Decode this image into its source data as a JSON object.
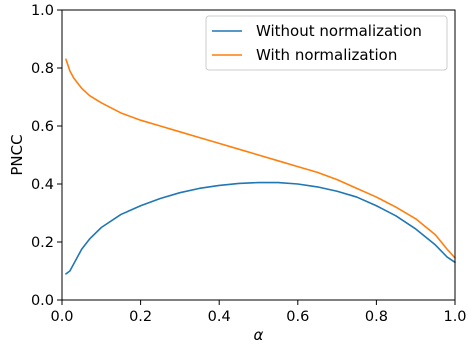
{
  "chart_data": {
    "type": "line",
    "title": "",
    "xlabel": "α",
    "ylabel": "PNCC",
    "xlim": [
      0.0,
      1.0
    ],
    "ylim": [
      0.0,
      1.0
    ],
    "xticks": [
      "0.0",
      "0.2",
      "0.4",
      "0.6",
      "0.8",
      "1.0"
    ],
    "yticks": [
      "0.0",
      "0.2",
      "0.4",
      "0.6",
      "0.8",
      "1.0"
    ],
    "grid": false,
    "legend_position": "top-right",
    "series": [
      {
        "name": "Without normalization",
        "color": "#1f77b4",
        "x": [
          0.01,
          0.02,
          0.03,
          0.04,
          0.05,
          0.07,
          0.1,
          0.15,
          0.2,
          0.25,
          0.3,
          0.35,
          0.4,
          0.45,
          0.5,
          0.55,
          0.6,
          0.65,
          0.7,
          0.75,
          0.8,
          0.85,
          0.9,
          0.95,
          0.98,
          1.0
        ],
        "y": [
          0.09,
          0.1,
          0.125,
          0.15,
          0.175,
          0.21,
          0.25,
          0.295,
          0.325,
          0.35,
          0.37,
          0.385,
          0.395,
          0.402,
          0.405,
          0.405,
          0.4,
          0.39,
          0.375,
          0.355,
          0.325,
          0.29,
          0.245,
          0.19,
          0.148,
          0.13
        ]
      },
      {
        "name": "With normalization",
        "color": "#ff7f0e",
        "x": [
          0.01,
          0.02,
          0.03,
          0.05,
          0.07,
          0.1,
          0.15,
          0.2,
          0.25,
          0.3,
          0.35,
          0.4,
          0.45,
          0.5,
          0.55,
          0.6,
          0.65,
          0.7,
          0.75,
          0.8,
          0.85,
          0.9,
          0.95,
          0.98,
          1.0
        ],
        "y": [
          0.83,
          0.79,
          0.765,
          0.73,
          0.705,
          0.68,
          0.645,
          0.62,
          0.6,
          0.58,
          0.56,
          0.54,
          0.52,
          0.5,
          0.48,
          0.46,
          0.44,
          0.415,
          0.385,
          0.355,
          0.32,
          0.28,
          0.225,
          0.175,
          0.145
        ]
      }
    ]
  }
}
